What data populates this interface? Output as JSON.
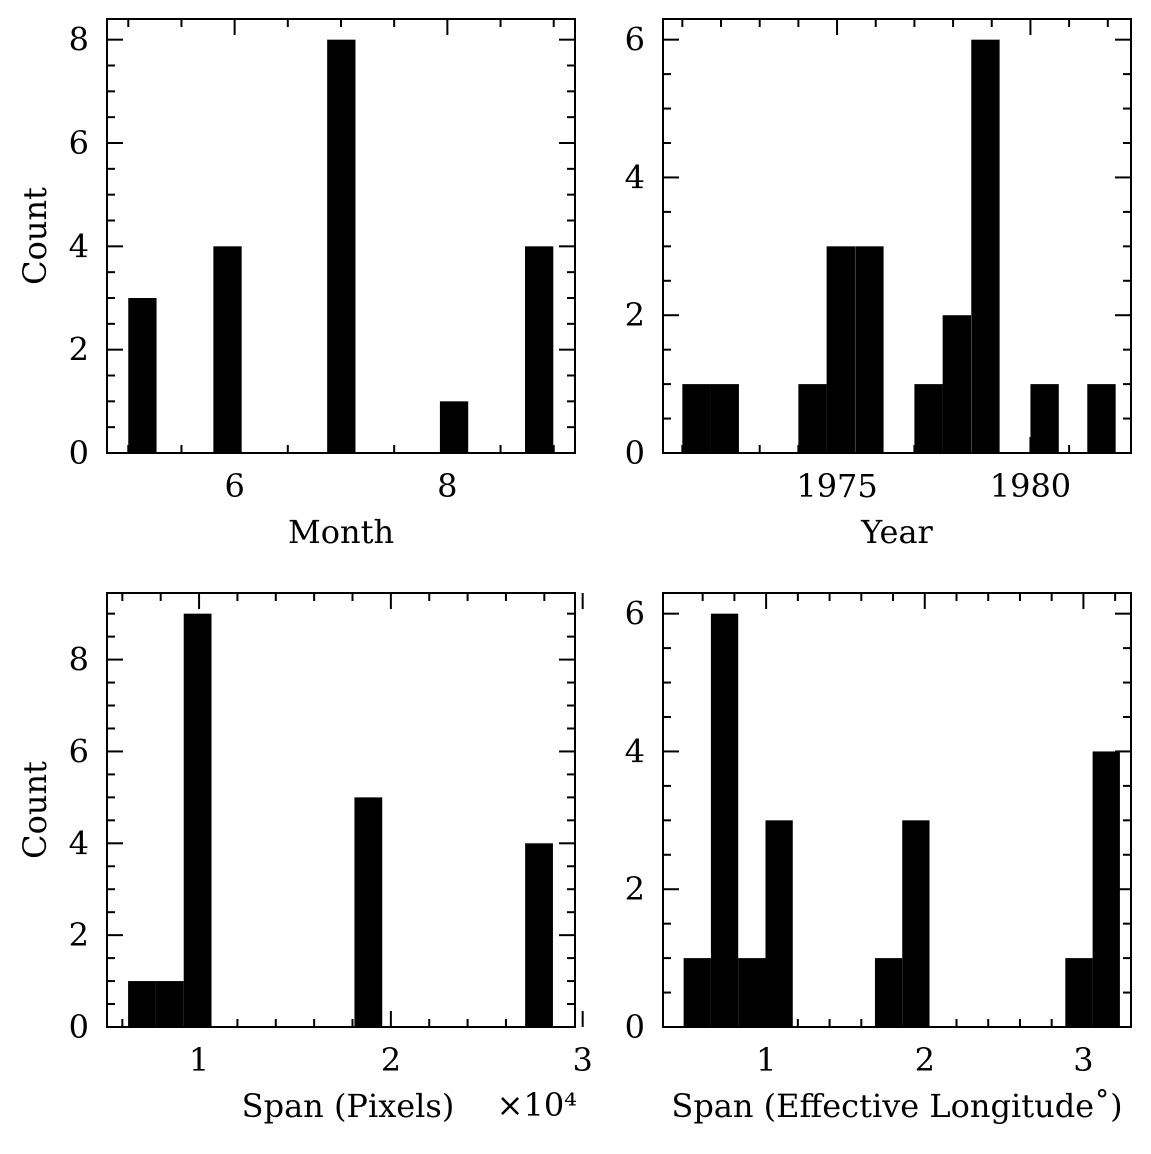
{
  "chart_data": [
    {
      "type": "bar",
      "xlabel": "Month",
      "ylabel": "Count",
      "xlim": [
        4.8,
        9.2
      ],
      "ylim": [
        0,
        8.4
      ],
      "xticks_major": [
        6,
        8
      ],
      "xticks_minor": [
        5,
        5.5,
        6.5,
        7,
        7.5,
        8.5,
        9
      ],
      "yticks_major": [
        0,
        2,
        4,
        6,
        8
      ],
      "yticks_minor": [
        0.5,
        1,
        1.5,
        2.5,
        3,
        3.5,
        4.5,
        5,
        5.5,
        6.5,
        7,
        7.5
      ],
      "tick_labels_x": [
        "6",
        "8"
      ],
      "tick_labels_y": [
        "0",
        "2",
        "4",
        "6",
        "8"
      ],
      "bin_width": 0.266,
      "bins": [
        {
          "x0": 5.0,
          "value": 3
        },
        {
          "x0": 5.8,
          "value": 4
        },
        {
          "x0": 6.87,
          "value": 8
        },
        {
          "x0": 7.93,
          "value": 1
        },
        {
          "x0": 8.73,
          "value": 4
        }
      ]
    },
    {
      "type": "bar",
      "xlabel": "Year",
      "ylabel": "",
      "xlim": [
        1970.5,
        1982.6
      ],
      "ylim": [
        0,
        6.3
      ],
      "xticks_major": [
        1975,
        1980
      ],
      "xticks_minor": [
        1971,
        1972,
        1973,
        1974,
        1976,
        1977,
        1978,
        1979,
        1981,
        1982
      ],
      "yticks_major": [
        0,
        2,
        4,
        6
      ],
      "yticks_minor": [
        0.5,
        1,
        1.5,
        2.5,
        3,
        3.5,
        4.5,
        5,
        5.5
      ],
      "tick_labels_x": [
        "1975",
        "1980"
      ],
      "tick_labels_y": [
        "0",
        "2",
        "4",
        "6"
      ],
      "bin_width": 0.733,
      "bins": [
        {
          "x0": 1971.0,
          "value": 1
        },
        {
          "x0": 1971.73,
          "value": 1
        },
        {
          "x0": 1974.0,
          "value": 1
        },
        {
          "x0": 1974.73,
          "value": 3
        },
        {
          "x0": 1975.47,
          "value": 3
        },
        {
          "x0": 1977.0,
          "value": 1
        },
        {
          "x0": 1977.73,
          "value": 2
        },
        {
          "x0": 1978.47,
          "value": 6
        },
        {
          "x0": 1980.0,
          "value": 1
        },
        {
          "x0": 1981.47,
          "value": 1
        }
      ]
    },
    {
      "type": "bar",
      "xlabel": "Span (Pixels)",
      "ylabel": "Count",
      "x_multiplier": "×10⁴",
      "xlim": [
        0.52,
        2.96
      ],
      "ylim": [
        0,
        9.45
      ],
      "xticks_major": [
        1,
        2,
        3
      ],
      "xticks_minor": [
        0.6,
        0.8,
        1.2,
        1.4,
        1.6,
        1.8,
        2.2,
        2.4,
        2.6,
        2.8
      ],
      "yticks_major": [
        0,
        2,
        4,
        6,
        8
      ],
      "yticks_minor": [
        0.5,
        1,
        1.5,
        2.5,
        3,
        3.5,
        4.5,
        5,
        5.5,
        6.5,
        7,
        7.5,
        8.5,
        9
      ],
      "tick_labels_x": [
        "1",
        "2",
        "3"
      ],
      "tick_labels_y": [
        "0",
        "2",
        "4",
        "6",
        "8"
      ],
      "bin_width": 0.145,
      "bins": [
        {
          "x0": 0.63,
          "value": 1
        },
        {
          "x0": 0.775,
          "value": 1
        },
        {
          "x0": 0.92,
          "value": 9
        },
        {
          "x0": 1.81,
          "value": 5
        },
        {
          "x0": 2.7,
          "value": 4
        }
      ]
    },
    {
      "type": "bar",
      "xlabel": "Span (Effective Longitude˚)",
      "ylabel": "",
      "xlim": [
        0.35,
        3.3
      ],
      "ylim": [
        0,
        6.3
      ],
      "xticks_major": [
        1,
        2,
        3
      ],
      "xticks_minor": [
        0.6,
        0.8,
        1.2,
        1.4,
        1.6,
        1.8,
        2.2,
        2.4,
        2.6,
        2.8,
        3.2
      ],
      "yticks_major": [
        0,
        2,
        4,
        6
      ],
      "yticks_minor": [
        0.5,
        1,
        1.5,
        2.5,
        3,
        3.5,
        4.5,
        5,
        5.5
      ],
      "tick_labels_x": [
        "1",
        "2",
        "3"
      ],
      "tick_labels_y": [
        "0",
        "2",
        "4",
        "6"
      ],
      "bin_width": 0.172,
      "bins": [
        {
          "x0": 0.48,
          "value": 1
        },
        {
          "x0": 0.652,
          "value": 6
        },
        {
          "x0": 0.824,
          "value": 1
        },
        {
          "x0": 0.996,
          "value": 3
        },
        {
          "x0": 1.686,
          "value": 1
        },
        {
          "x0": 1.858,
          "value": 3
        },
        {
          "x0": 2.886,
          "value": 1
        },
        {
          "x0": 3.058,
          "value": 4
        }
      ]
    }
  ]
}
